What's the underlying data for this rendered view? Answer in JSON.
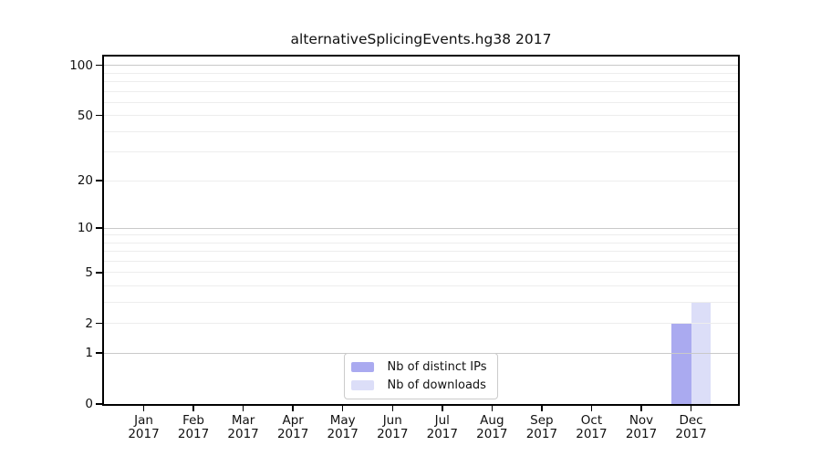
{
  "chart_data": {
    "type": "bar",
    "title": "alternativeSplicingEvents.hg38 2017",
    "categories": [
      "Jan",
      "Feb",
      "Mar",
      "Apr",
      "May",
      "Jun",
      "Jul",
      "Aug",
      "Sep",
      "Oct",
      "Nov",
      "Dec"
    ],
    "category_year": "2017",
    "series": [
      {
        "name": "Nb of distinct IPs",
        "color": "#aaaaf0",
        "values": [
          0,
          0,
          0,
          0,
          0,
          0,
          0,
          0,
          0,
          0,
          0,
          2
        ]
      },
      {
        "name": "Nb of downloads",
        "color": "#dcdef8",
        "values": [
          0,
          0,
          0,
          0,
          0,
          0,
          0,
          0,
          0,
          0,
          0,
          3
        ]
      }
    ],
    "yscale": "log1p",
    "ylim": [
      0,
      113
    ],
    "y_ticks": [
      0,
      1,
      2,
      5,
      10,
      20,
      50,
      100
    ],
    "y_major_grid": [
      1,
      10,
      100
    ],
    "y_minor_grid": [
      2,
      3,
      4,
      5,
      6,
      7,
      8,
      9,
      20,
      30,
      40,
      50,
      60,
      70,
      80,
      90
    ],
    "legend_position": "lower center",
    "colors": {
      "major_grid": "#c9c9c9",
      "minor_grid": "#ededed",
      "frame": "#000000",
      "text": "#111111",
      "background": "#ffffff"
    }
  }
}
